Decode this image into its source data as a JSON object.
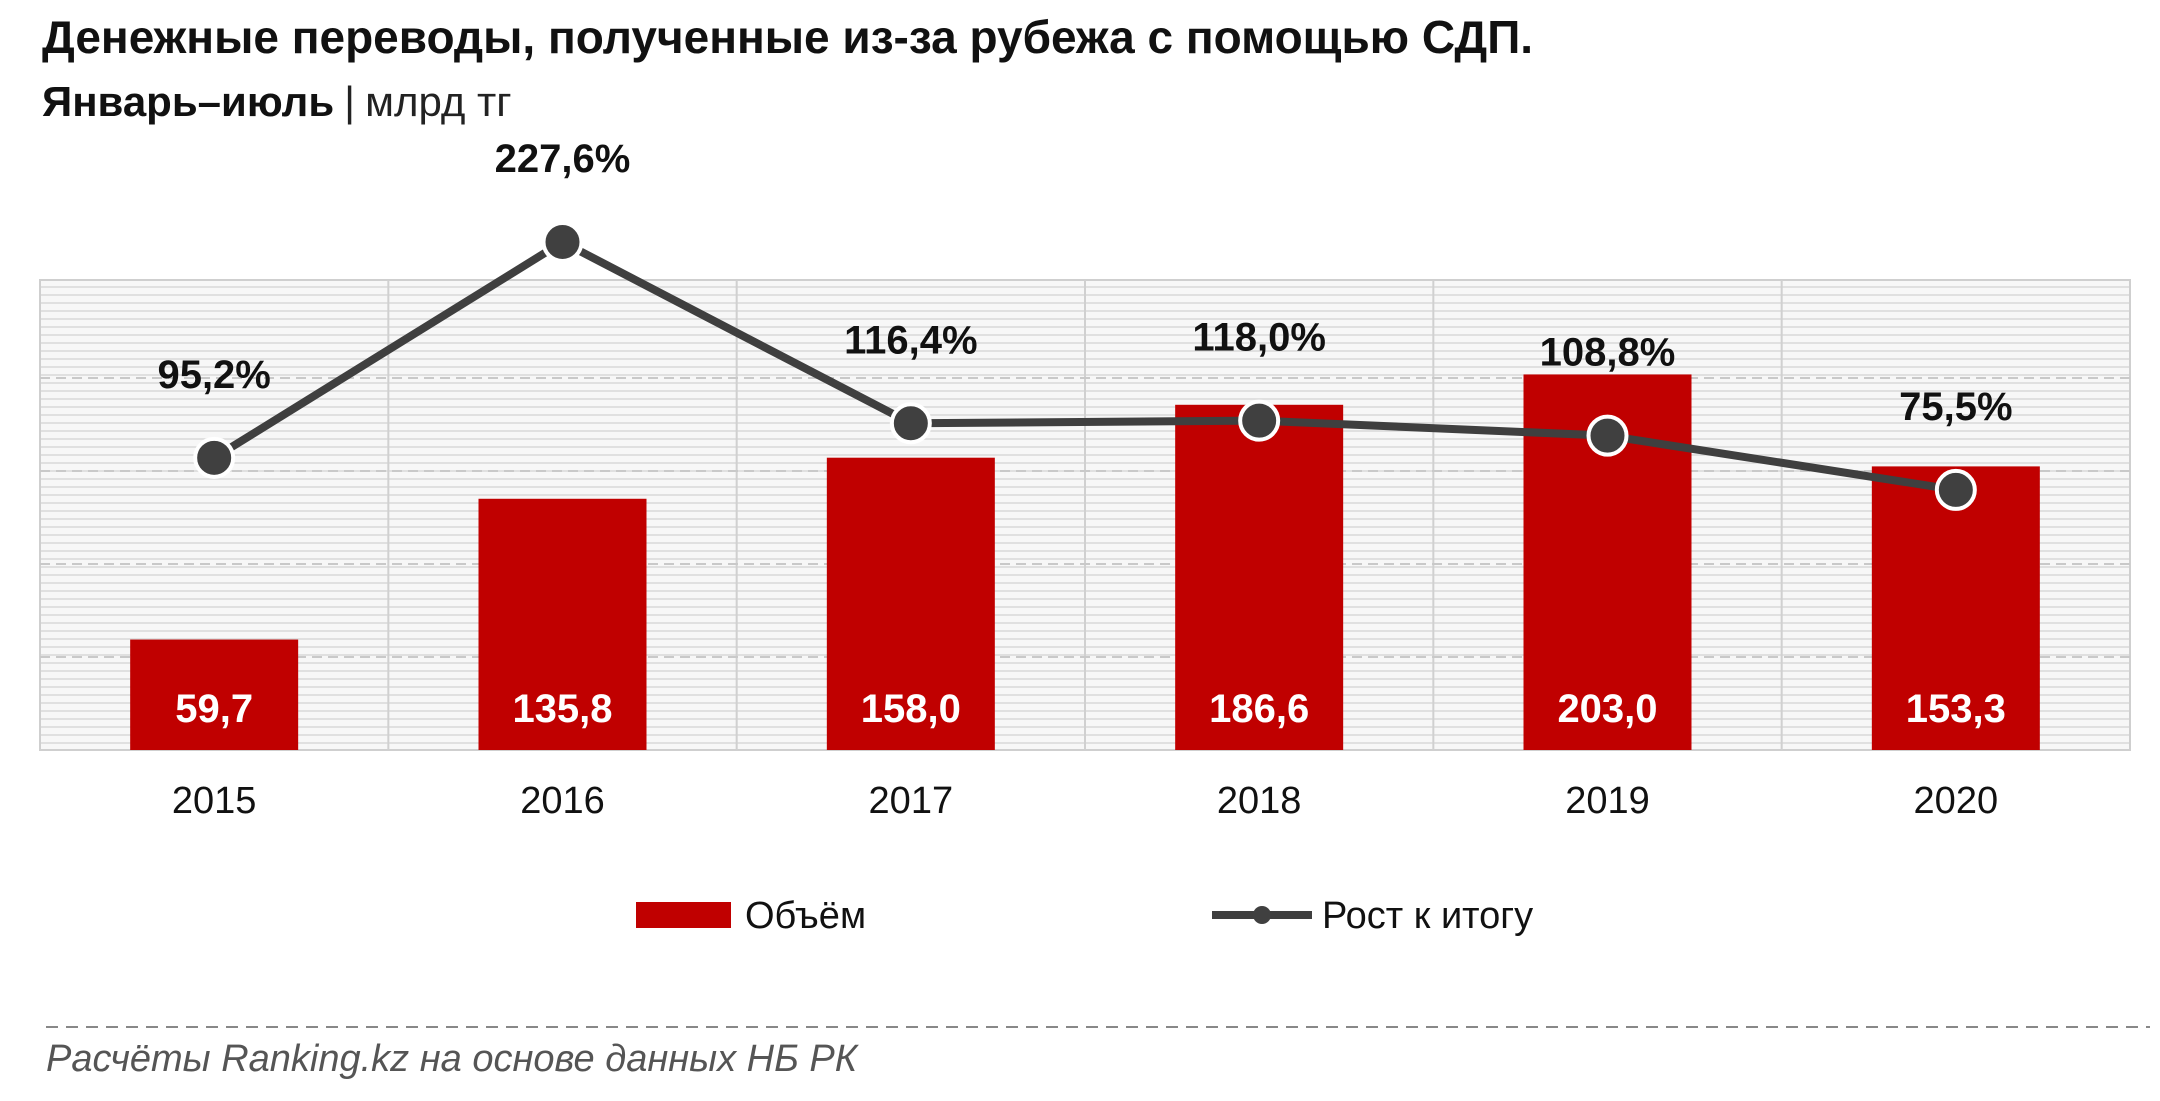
{
  "title": "Денежные переводы, полученные из-за рубежа с помощью СДП.",
  "subtitle": {
    "main": "Январь–июль",
    "separator": "|",
    "unit": "млрд тг"
  },
  "chart_data": {
    "type": "bar",
    "categories": [
      "2015",
      "2016",
      "2017",
      "2018",
      "2019",
      "2020"
    ],
    "series": [
      {
        "name": "Объём",
        "type": "bar",
        "color": "#c00000",
        "values": [
          59.7,
          135.8,
          158.0,
          186.6,
          203.0,
          153.3
        ],
        "labels": [
          "59,7",
          "135,8",
          "158,0",
          "186,6",
          "203,0",
          "153,3"
        ]
      },
      {
        "name": "Рост к итогу",
        "type": "line",
        "color": "#3f3f3f",
        "unit": "%",
        "values": [
          95.2,
          227.6,
          116.4,
          118.0,
          108.8,
          75.5
        ],
        "labels": [
          "95,2%",
          "227,6%",
          "116,4%",
          "118,0%",
          "108,8%",
          "75,5%"
        ]
      }
    ],
    "legend": {
      "position": "bottom",
      "entries": [
        "Объём",
        "Рост к итогу"
      ]
    },
    "grid": true
  },
  "source": "Расчёты Ranking.kz на основе данных НБ РК"
}
